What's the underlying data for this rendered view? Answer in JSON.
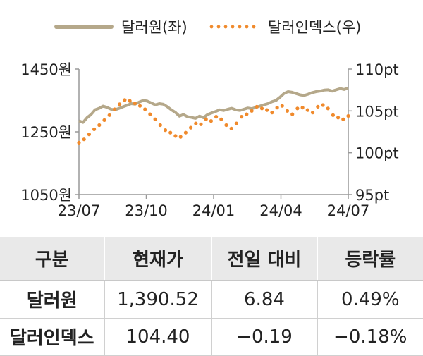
{
  "legend": {
    "series1": "달러원(좌)",
    "series2": "달러인덱스(우)"
  },
  "colors": {
    "series1": "#b5a88a",
    "series2": "#f08a2c",
    "axis": "#999999"
  },
  "chart_data": {
    "type": "line",
    "x_ticks": [
      "23/07",
      "23/10",
      "24/01",
      "24/04",
      "24/07"
    ],
    "y_left_ticks": [
      "1450원",
      "1250원",
      "1050원"
    ],
    "y_left_range": [
      1050,
      1450
    ],
    "y_right_ticks": [
      "110pt",
      "105pt",
      "100pt",
      "95pt"
    ],
    "y_right_range": [
      95,
      110
    ],
    "legend_position": "top",
    "series": [
      {
        "name": "달러원(좌)",
        "axis": "left",
        "style": "solid",
        "values": [
          1285,
          1280,
          1295,
          1305,
          1320,
          1325,
          1332,
          1328,
          1322,
          1320,
          1325,
          1330,
          1335,
          1340,
          1338,
          1345,
          1350,
          1348,
          1342,
          1336,
          1340,
          1338,
          1330,
          1320,
          1312,
          1300,
          1305,
          1298,
          1296,
          1293,
          1300,
          1295,
          1305,
          1310,
          1315,
          1320,
          1318,
          1322,
          1325,
          1320,
          1318,
          1322,
          1326,
          1324,
          1328,
          1332,
          1336,
          1340,
          1346,
          1350,
          1360,
          1372,
          1378,
          1376,
          1372,
          1368,
          1366,
          1370,
          1375,
          1378,
          1380,
          1383,
          1384,
          1380,
          1384,
          1388,
          1385,
          1390
        ]
      },
      {
        "name": "달러인덱스(우)",
        "axis": "right",
        "style": "dotted",
        "values": [
          101.2,
          101.6,
          102.2,
          102.8,
          103.3,
          103.9,
          104.5,
          105.2,
          105.8,
          106.3,
          106.2,
          105.9,
          105.6,
          105.2,
          104.6,
          104.0,
          103.3,
          102.7,
          102.4,
          102.0,
          101.9,
          102.4,
          103.0,
          103.5,
          103.4,
          104.0,
          103.8,
          104.3,
          104.0,
          103.3,
          102.9,
          103.5,
          104.3,
          104.6,
          105.0,
          105.5,
          105.3,
          105.1,
          104.8,
          105.4,
          105.6,
          105.0,
          104.6,
          105.3,
          105.4,
          105.1,
          104.8,
          105.5,
          105.7,
          105.3,
          104.5,
          104.2,
          104.0,
          104.4
        ]
      }
    ]
  },
  "table": {
    "headers": [
      "구분",
      "현재가",
      "전일 대비",
      "등락률"
    ],
    "rows": [
      [
        "달러원",
        "1,390.52",
        "6.84",
        "0.49%"
      ],
      [
        "달러인덱스",
        "104.40",
        "−0.19",
        "−0.18%"
      ]
    ]
  }
}
